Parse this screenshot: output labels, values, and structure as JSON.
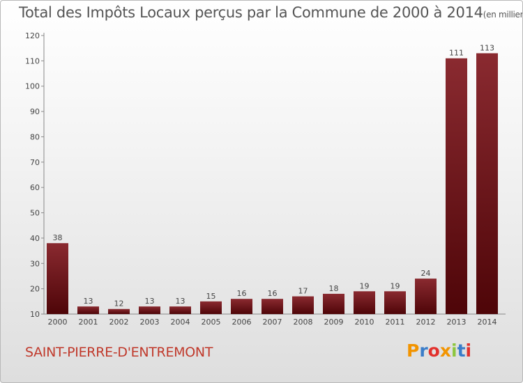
{
  "title": "Total des Impôts Locaux perçus par la Commune de 2000 à 2014",
  "unit": "(en milliers d'€)",
  "commune": "SAINT-PIERRE-D'ENTREMONT",
  "logo": {
    "letters": [
      "P",
      "r",
      "o",
      "x",
      "i",
      "t",
      "i"
    ],
    "colors": [
      "#f29400",
      "#3a7dc9",
      "#e2312d",
      "#f29400",
      "#8dc63f",
      "#3a7dc9",
      "#e2312d"
    ]
  },
  "chart_data": {
    "type": "bar",
    "categories": [
      "2000",
      "2001",
      "2002",
      "2003",
      "2004",
      "2005",
      "2006",
      "2007",
      "2008",
      "2009",
      "2010",
      "2011",
      "2012",
      "2013",
      "2014"
    ],
    "values": [
      38,
      13,
      12,
      13,
      13,
      15,
      16,
      16,
      17,
      18,
      19,
      19,
      24,
      111,
      113
    ],
    "ylim": [
      10,
      120
    ],
    "yticks": [
      10,
      20,
      30,
      40,
      50,
      60,
      70,
      80,
      90,
      100,
      110,
      120
    ],
    "grid": false,
    "bar_color": "#7a1218"
  }
}
